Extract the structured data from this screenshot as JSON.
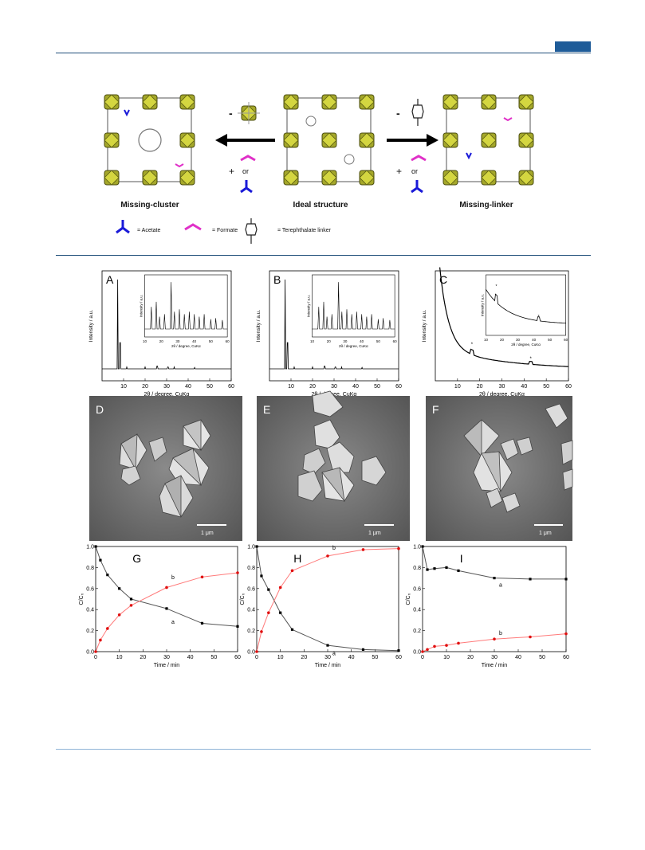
{
  "scheme": {
    "labels": {
      "missing_cluster": "Missing-cluster",
      "ideal": "Ideal structure",
      "missing_linker": "Missing-linker"
    },
    "minus_sign": "-",
    "plus_sign": "+",
    "or_label": "or",
    "legend": {
      "acetate": "= Acetate",
      "formate": "= Formate",
      "terephthalate": "= Terephthalate linker"
    },
    "colors": {
      "cluster": "#a4a72a",
      "acetate": "#1a1ad8",
      "formate": "#e030c8",
      "linker": "#444444"
    }
  },
  "xrd": {
    "xlabel": "2θ / degree, CuKα",
    "ylabel": "Intensity / a.u.",
    "inset_xlabel": "2θ / degree, CuKα",
    "inset_ylabel": "Intensity / a.u.",
    "xticks": [
      "10",
      "20",
      "30",
      "40",
      "50",
      "60"
    ],
    "panels": [
      {
        "letter": "A"
      },
      {
        "letter": "B"
      },
      {
        "letter": "C",
        "marker": "*"
      }
    ]
  },
  "sem": {
    "scale_bar": "1 μm",
    "panels": [
      {
        "letter": "D"
      },
      {
        "letter": "E"
      },
      {
        "letter": "F"
      }
    ]
  },
  "chart_data": [
    {
      "type": "scatter",
      "title": "G",
      "xlabel": "Time / min",
      "ylabel": "C/C₀",
      "xlim": [
        0,
        60
      ],
      "ylim": [
        0,
        1.0
      ],
      "xticks": [
        "0",
        "10",
        "20",
        "30",
        "40",
        "50",
        "60"
      ],
      "yticks": [
        "0.0",
        "0.2",
        "0.4",
        "0.6",
        "0.8",
        "1.0"
      ],
      "series": [
        {
          "name": "a",
          "color": "#000000",
          "x": [
            0,
            2,
            5,
            10,
            15,
            30,
            45,
            60
          ],
          "y": [
            1.0,
            0.87,
            0.73,
            0.6,
            0.5,
            0.41,
            0.27,
            0.24
          ]
        },
        {
          "name": "b",
          "color": "#e01010",
          "x": [
            0,
            2,
            5,
            10,
            15,
            30,
            45,
            60
          ],
          "y": [
            0.0,
            0.11,
            0.22,
            0.35,
            0.44,
            0.61,
            0.71,
            0.75
          ]
        }
      ]
    },
    {
      "type": "scatter",
      "title": "H",
      "xlabel": "Time / min",
      "ylabel": "C/C₀",
      "xlim": [
        0,
        60
      ],
      "ylim": [
        0,
        1.0
      ],
      "xticks": [
        "0",
        "10",
        "20",
        "30",
        "40",
        "50",
        "60"
      ],
      "yticks": [
        "0.0",
        "0.2",
        "0.4",
        "0.6",
        "0.8",
        "1.0"
      ],
      "series": [
        {
          "name": "a",
          "color": "#000000",
          "x": [
            0,
            2,
            5,
            10,
            15,
            30,
            45,
            60
          ],
          "y": [
            1.0,
            0.72,
            0.59,
            0.37,
            0.21,
            0.06,
            0.02,
            0.01
          ]
        },
        {
          "name": "b",
          "color": "#e01010",
          "x": [
            0,
            2,
            5,
            10,
            15,
            30,
            45,
            60
          ],
          "y": [
            0.0,
            0.19,
            0.37,
            0.61,
            0.77,
            0.91,
            0.97,
            0.98
          ]
        }
      ]
    },
    {
      "type": "scatter",
      "title": "I",
      "xlabel": "Time / min",
      "ylabel": "C/C₀",
      "xlim": [
        0,
        60
      ],
      "ylim": [
        0,
        1.0
      ],
      "xticks": [
        "0",
        "10",
        "20",
        "30",
        "40",
        "50",
        "60"
      ],
      "yticks": [
        "0.0",
        "0.2",
        "0.4",
        "0.6",
        "0.8",
        "1.0"
      ],
      "series": [
        {
          "name": "a",
          "color": "#000000",
          "x": [
            0,
            2,
            5,
            10,
            15,
            30,
            45,
            60
          ],
          "y": [
            1.0,
            0.78,
            0.79,
            0.8,
            0.77,
            0.7,
            0.69,
            0.69
          ]
        },
        {
          "name": "b",
          "color": "#e01010",
          "x": [
            0,
            2,
            5,
            10,
            15,
            30,
            45,
            60
          ],
          "y": [
            0.0,
            0.02,
            0.05,
            0.06,
            0.08,
            0.12,
            0.14,
            0.17
          ]
        }
      ]
    }
  ]
}
